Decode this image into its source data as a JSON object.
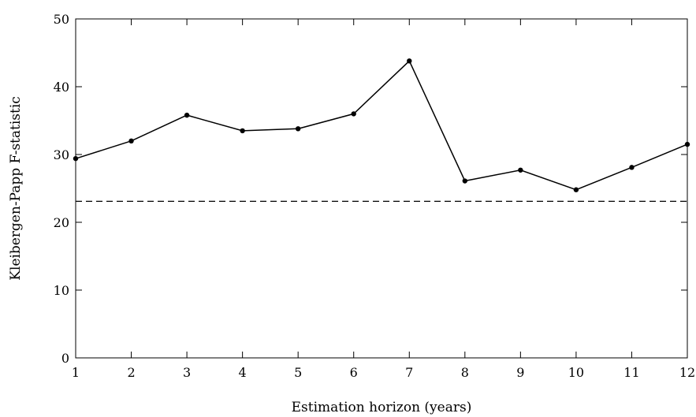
{
  "chart_data": {
    "type": "line",
    "xlabel": "Estimation horizon (years)",
    "ylabel": "Kleibergen-Papp F-statistic",
    "xlim": [
      1,
      12
    ],
    "ylim": [
      0,
      50
    ],
    "x_ticks": [
      "1",
      "2",
      "3",
      "4",
      "5",
      "6",
      "7",
      "8",
      "9",
      "10",
      "11",
      "12"
    ],
    "y_ticks": [
      "0",
      "10",
      "20",
      "30",
      "40",
      "50"
    ],
    "grid": false,
    "legend": "none",
    "series": [
      {
        "x": [
          1,
          2,
          3,
          4,
          5,
          6,
          7,
          8,
          9,
          10,
          11,
          12
        ],
        "values": [
          29.4,
          32.0,
          35.8,
          33.5,
          33.8,
          36.0,
          43.8,
          26.1,
          27.7,
          24.8,
          28.1,
          31.5
        ],
        "style": "solid",
        "marker": "dot",
        "color": "#000000"
      }
    ],
    "reference_lines": [
      {
        "y": 23.1,
        "style": "dashed",
        "color": "#000000"
      }
    ]
  }
}
